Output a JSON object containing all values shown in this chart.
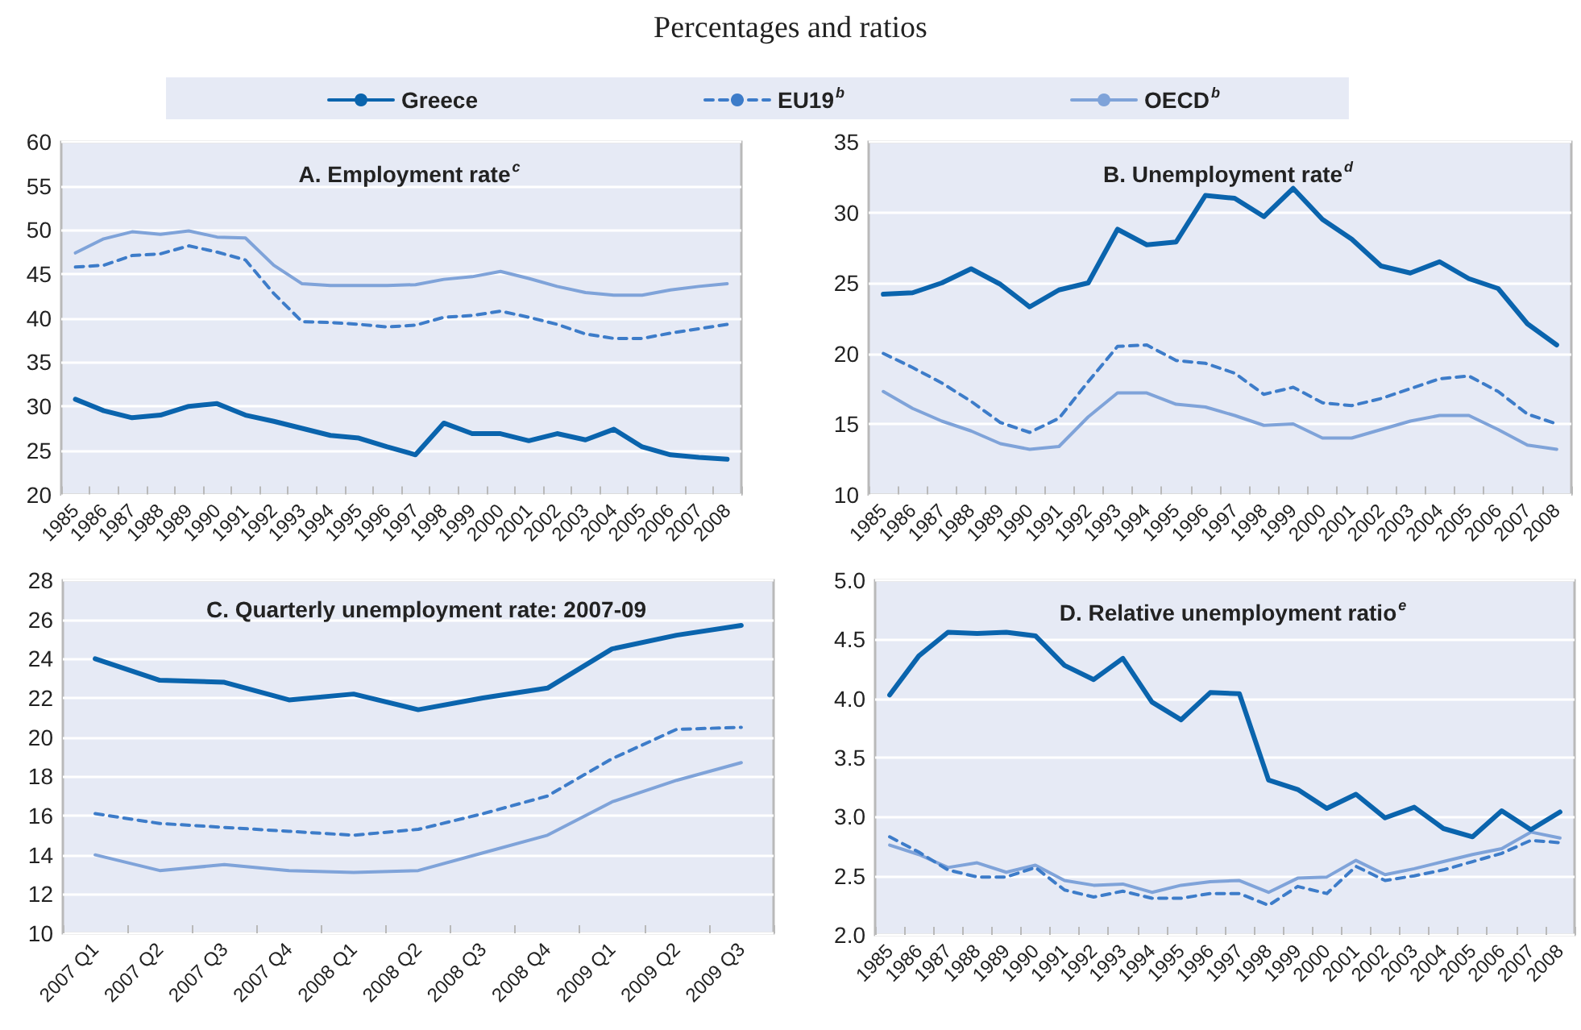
{
  "chart_data": [
    {
      "type": "line",
      "title": "A. Employment rate$^{c}$",
      "annotations": [
        "Percentages and ratios"
      ],
      "categories": [
        "1985",
        "1986",
        "1987",
        "1988",
        "1989",
        "1990",
        "1991",
        "1992",
        "1993",
        "1994",
        "1995",
        "1996",
        "1997",
        "1998",
        "1999",
        "2000",
        "2001",
        "2002",
        "2003",
        "2004",
        "2005",
        "2006",
        "2007",
        "2008"
      ],
      "ylim": [
        20,
        60
      ],
      "yticks": [
        20,
        25,
        30,
        35,
        40,
        45,
        50,
        55,
        60
      ],
      "grid": "y",
      "legend": "top",
      "marker": "none",
      "series": [
        {
          "name": "Greece",
          "color": "#0a64ad",
          "line_style": "solid",
          "values": [
            30.8,
            29.5,
            28.7,
            29.0,
            30.0,
            30.3,
            29.0,
            28.3,
            27.5,
            26.7,
            26.4,
            25.4,
            24.5,
            28.1,
            26.9,
            26.9,
            26.1,
            26.9,
            26.2,
            27.4,
            25.4,
            24.5,
            24.2,
            24.0
          ]
        },
        {
          "name": "EU19$^{b}$",
          "color": "#3d7cc9",
          "line_style": "dashed",
          "values": [
            45.8,
            46.0,
            47.1,
            47.3,
            48.2,
            47.5,
            46.6,
            42.8,
            39.6,
            39.5,
            39.3,
            39.0,
            39.2,
            40.1,
            40.3,
            40.8,
            40.1,
            39.3,
            38.2,
            37.7,
            37.7,
            38.3,
            38.8,
            39.3
          ]
        },
        {
          "name": "OECD$^{b}$",
          "color": "#7fa3d9",
          "line_style": "solid",
          "values": [
            47.4,
            49.0,
            49.8,
            49.5,
            49.9,
            49.2,
            49.1,
            46.0,
            43.9,
            43.7,
            43.7,
            43.7,
            43.8,
            44.4,
            44.7,
            45.3,
            44.5,
            43.6,
            42.9,
            42.6,
            42.6,
            43.2,
            43.6,
            43.9
          ]
        }
      ]
    },
    {
      "type": "line",
      "title": "B. Unemployment rate$^{d}$",
      "categories": [
        "1985",
        "1986",
        "1987",
        "1988",
        "1989",
        "1990",
        "1991",
        "1992",
        "1993",
        "1994",
        "1995",
        "1996",
        "1997",
        "1998",
        "1999",
        "2000",
        "2001",
        "2002",
        "2003",
        "2004",
        "2005",
        "2006",
        "2007",
        "2008"
      ],
      "ylim": [
        10,
        35
      ],
      "yticks": [
        10,
        15,
        20,
        25,
        30,
        35
      ],
      "grid": "y",
      "marker": "none",
      "series": [
        {
          "color": "#0a64ad",
          "line_style": "solid",
          "values": [
            24.2,
            24.3,
            25.0,
            26.0,
            24.9,
            23.3,
            24.5,
            25.0,
            28.8,
            27.7,
            27.9,
            31.2,
            31.0,
            29.7,
            31.7,
            29.5,
            28.1,
            26.2,
            25.7,
            26.5,
            25.3,
            24.6,
            22.1,
            20.6
          ]
        },
        {
          "color": "#3d7cc9",
          "line_style": "dashed",
          "values": [
            20.0,
            19.0,
            17.9,
            16.6,
            15.1,
            14.4,
            15.4,
            18.0,
            20.5,
            20.6,
            19.5,
            19.3,
            18.6,
            17.1,
            17.6,
            16.5,
            16.3,
            16.8,
            17.5,
            18.2,
            18.4,
            17.3,
            15.7,
            15.0
          ]
        },
        {
          "color": "#7fa3d9",
          "line_style": "solid",
          "values": [
            17.3,
            16.1,
            15.2,
            14.5,
            13.6,
            13.2,
            13.4,
            15.5,
            17.2,
            17.2,
            16.4,
            16.2,
            15.6,
            14.9,
            15.0,
            14.0,
            14.0,
            14.6,
            15.2,
            15.6,
            15.6,
            14.6,
            13.5,
            13.2
          ]
        }
      ]
    },
    {
      "type": "line",
      "title": "C. Quarterly unemployment rate: 2007-09",
      "categories": [
        "2007 Q1",
        "2007 Q2",
        "2007 Q3",
        "2007 Q4",
        "2008 Q1",
        "2008 Q2",
        "2008 Q3",
        "2008 Q4",
        "2009 Q1",
        "2009 Q2",
        "2009 Q3"
      ],
      "ylim": [
        10,
        28
      ],
      "yticks": [
        10,
        12,
        14,
        16,
        18,
        20,
        22,
        24,
        26,
        28
      ],
      "grid": "y",
      "marker": "none",
      "series": [
        {
          "color": "#0a64ad",
          "line_style": "solid",
          "values": [
            24.0,
            22.9,
            22.8,
            21.9,
            22.2,
            21.4,
            22.0,
            22.5,
            24.5,
            25.2,
            25.7
          ]
        },
        {
          "color": "#3d7cc9",
          "line_style": "dashed",
          "values": [
            16.1,
            15.6,
            15.4,
            15.2,
            15.0,
            15.3,
            16.1,
            17.0,
            18.9,
            20.4,
            20.5
          ]
        },
        {
          "color": "#7fa3d9",
          "line_style": "solid",
          "values": [
            14.0,
            13.2,
            13.5,
            13.2,
            13.1,
            13.2,
            14.1,
            15.0,
            16.7,
            17.8,
            18.7
          ]
        }
      ]
    },
    {
      "type": "line",
      "title": "D. Relative unemployment ratio$^{e}$",
      "categories": [
        "1985",
        "1986",
        "1987",
        "1988",
        "1989",
        "1990",
        "1991",
        "1992",
        "1993",
        "1994",
        "1995",
        "1996",
        "1997",
        "1998",
        "1999",
        "2000",
        "2001",
        "2002",
        "2003",
        "2004",
        "2005",
        "2006",
        "2007",
        "2008"
      ],
      "ylim": [
        2,
        5
      ],
      "yticks": [
        {
          "value": 2,
          "label": "2.0"
        },
        2.5,
        {
          "value": 3,
          "label": "3.0"
        },
        3.5,
        {
          "value": 4,
          "label": "4.0"
        },
        4.5,
        {
          "value": 5,
          "label": "5.0"
        }
      ],
      "grid": "y",
      "marker": "none",
      "series": [
        {
          "color": "#0a64ad",
          "line_style": "solid",
          "values": [
            4.03,
            4.36,
            4.56,
            4.55,
            4.56,
            4.53,
            4.28,
            4.16,
            4.34,
            3.97,
            3.82,
            4.05,
            4.04,
            3.31,
            3.23,
            3.07,
            3.19,
            2.99,
            3.08,
            2.9,
            2.83,
            3.05,
            2.89,
            3.04
          ]
        },
        {
          "color": "#3d7cc9",
          "line_style": "dashed",
          "values": [
            2.83,
            2.7,
            2.55,
            2.49,
            2.49,
            2.57,
            2.38,
            2.32,
            2.37,
            2.31,
            2.31,
            2.35,
            2.35,
            2.25,
            2.41,
            2.35,
            2.58,
            2.46,
            2.5,
            2.55,
            2.62,
            2.69,
            2.8,
            2.78
          ]
        },
        {
          "color": "#7fa3d9",
          "line_style": "solid",
          "values": [
            2.76,
            2.68,
            2.57,
            2.61,
            2.53,
            2.59,
            2.46,
            2.42,
            2.43,
            2.36,
            2.42,
            2.45,
            2.46,
            2.36,
            2.48,
            2.49,
            2.63,
            2.51,
            2.56,
            2.62,
            2.68,
            2.73,
            2.87,
            2.82
          ]
        }
      ]
    }
  ]
}
